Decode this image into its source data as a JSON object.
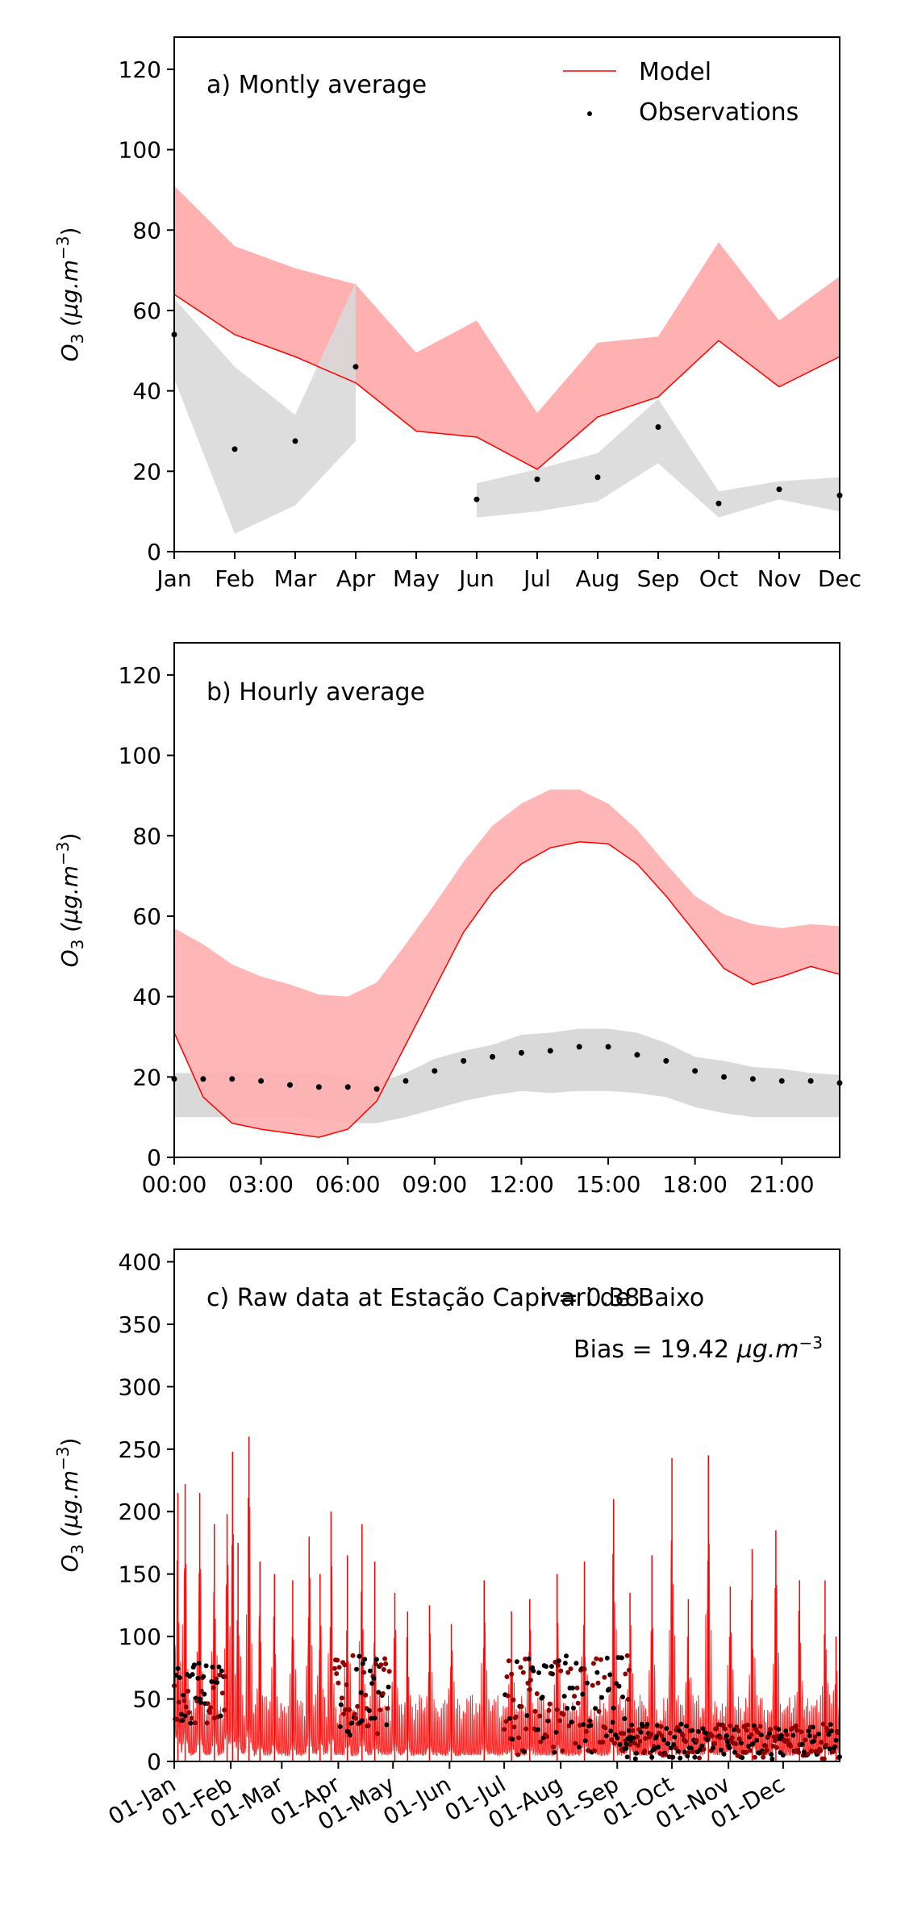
{
  "colors": {
    "model": "#ff0000",
    "model_band": "#ffb0b0",
    "obs": "#000000",
    "obs_band": "#d9d9d9"
  },
  "chart_data": [
    {
      "type": "line",
      "panel": "a",
      "annotation": "a) Montly average",
      "ylabel": "O3 (μg.m−3)",
      "ylabel_main": "O",
      "ylabel_sub": "3",
      "ylabel_unit": "(μg.m",
      "ylabel_exp": "−3",
      "ylabel_close": ")",
      "ylim": [
        0,
        128
      ],
      "yticks": [
        0,
        20,
        40,
        60,
        80,
        100,
        120
      ],
      "legend": {
        "placement": "top-right",
        "model": "Model",
        "observations": "Observations"
      },
      "categories": [
        "Jan",
        "Feb",
        "Mar",
        "Apr",
        "May",
        "Jun",
        "Jul",
        "Aug",
        "Sep",
        "Oct",
        "Nov",
        "Dec"
      ],
      "model": {
        "mean": [
          64,
          54,
          48.5,
          42,
          30,
          28.5,
          20.5,
          33.5,
          38.5,
          52.5,
          41,
          48.5
        ],
        "upper": [
          91,
          76,
          70.5,
          66.5,
          49.5,
          57.5,
          34.5,
          52,
          53.5,
          77,
          57.5,
          68.5
        ]
      },
      "observations": {
        "values": [
          54,
          25.5,
          27.5,
          46,
          null,
          13,
          18,
          18.5,
          31,
          12,
          15.5,
          14
        ],
        "lower": [
          43,
          4.5,
          11.5,
          27.5,
          null,
          8.5,
          10,
          12.5,
          22,
          8.5,
          13,
          10
        ],
        "upper": [
          63,
          46,
          34,
          67,
          null,
          17,
          20.5,
          24.5,
          38,
          15,
          17.5,
          18.5
        ]
      }
    },
    {
      "type": "line",
      "panel": "b",
      "annotation": "b) Hourly average",
      "ylabel": "O3 (μg.m−3)",
      "ylabel_main": "O",
      "ylabel_sub": "3",
      "ylabel_unit": "(μg.m",
      "ylabel_exp": "−3",
      "ylabel_close": ")",
      "ylim": [
        0,
        128
      ],
      "yticks": [
        0,
        20,
        40,
        60,
        80,
        100,
        120
      ],
      "xticklabels": [
        "00:00",
        "03:00",
        "06:00",
        "09:00",
        "12:00",
        "15:00",
        "18:00",
        "21:00"
      ],
      "x": [
        0,
        1,
        2,
        3,
        4,
        5,
        6,
        7,
        8,
        9,
        10,
        11,
        12,
        13,
        14,
        15,
        16,
        17,
        18,
        19,
        20,
        21,
        22,
        23
      ],
      "model": {
        "mean": [
          31,
          15,
          8.5,
          7,
          6,
          5,
          7,
          14,
          28,
          42,
          56,
          66,
          73,
          77,
          78.5,
          78,
          73,
          65,
          56,
          47,
          43,
          45,
          47.5,
          45.5
        ],
        "upper": [
          57,
          53,
          48,
          45,
          43,
          40.5,
          40,
          43.5,
          53,
          63,
          73.5,
          82.5,
          88,
          91.5,
          91.5,
          88,
          81.5,
          73,
          65,
          60.5,
          58,
          57,
          58,
          57.5
        ]
      },
      "observations": {
        "values": [
          19.5,
          19.5,
          19.5,
          19,
          18,
          17.5,
          17.5,
          17,
          19,
          21.5,
          24,
          25,
          26,
          26.5,
          27.5,
          27.5,
          25.5,
          24,
          21.5,
          20,
          19.5,
          19,
          19,
          18.5
        ],
        "lower": [
          10,
          10,
          10,
          10,
          10,
          9.5,
          8.5,
          8.5,
          10,
          12,
          14,
          15.5,
          16.5,
          16,
          16.5,
          16.5,
          16,
          15,
          12.5,
          11,
          10,
          10,
          10,
          10
        ],
        "upper": [
          21,
          21,
          21,
          21,
          21,
          21,
          20,
          18.5,
          21,
          24.5,
          26.5,
          28,
          30.5,
          31,
          32,
          32,
          31,
          28.5,
          25,
          24,
          22.5,
          22,
          21,
          20.5
        ]
      }
    },
    {
      "type": "line",
      "panel": "c",
      "annotation": "c) Raw data at Estação Capivari de Baixo",
      "stat_r": "r = 0.38",
      "stat_bias": "Bias = 19.42 μg.m−3",
      "stat_bias_text": "Bias = 19.42",
      "stat_bias_unit": "μg.m",
      "stat_bias_exp": "−3",
      "ylabel": "O3 (μg.m−3)",
      "ylabel_main": "O",
      "ylabel_sub": "3",
      "ylabel_unit": "(μg.m",
      "ylabel_exp": "−3",
      "ylabel_close": ")",
      "ylim": [
        0,
        410
      ],
      "yticks": [
        0,
        50,
        100,
        150,
        200,
        250,
        300,
        350,
        400
      ],
      "xticklabels": [
        "01-Jan",
        "01-Feb",
        "01-Mar",
        "01-Apr",
        "01-May",
        "01-Jun",
        "01-Jul",
        "01-Aug",
        "01-Sep",
        "01-Oct",
        "01-Nov",
        "01-Dec"
      ],
      "x_range_days": [
        0,
        365
      ],
      "model_peaks": [
        {
          "day": 2,
          "value": 215
        },
        {
          "day": 6,
          "value": 222
        },
        {
          "day": 14,
          "value": 215
        },
        {
          "day": 22,
          "value": 190
        },
        {
          "day": 29,
          "value": 198
        },
        {
          "day": 32,
          "value": 248
        },
        {
          "day": 35,
          "value": 175
        },
        {
          "day": 41,
          "value": 260
        },
        {
          "day": 47,
          "value": 160
        },
        {
          "day": 55,
          "value": 150
        },
        {
          "day": 65,
          "value": 145
        },
        {
          "day": 74,
          "value": 180
        },
        {
          "day": 80,
          "value": 150
        },
        {
          "day": 86,
          "value": 200
        },
        {
          "day": 95,
          "value": 165
        },
        {
          "day": 103,
          "value": 190
        },
        {
          "day": 110,
          "value": 160
        },
        {
          "day": 121,
          "value": 135
        },
        {
          "day": 128,
          "value": 120
        },
        {
          "day": 140,
          "value": 125
        },
        {
          "day": 152,
          "value": 110
        },
        {
          "day": 170,
          "value": 145
        },
        {
          "day": 185,
          "value": 120
        },
        {
          "day": 195,
          "value": 130
        },
        {
          "day": 210,
          "value": 150
        },
        {
          "day": 225,
          "value": 160
        },
        {
          "day": 241,
          "value": 210
        },
        {
          "day": 250,
          "value": 135
        },
        {
          "day": 262,
          "value": 165
        },
        {
          "day": 273,
          "value": 243
        },
        {
          "day": 282,
          "value": 130
        },
        {
          "day": 293,
          "value": 245
        },
        {
          "day": 305,
          "value": 140
        },
        {
          "day": 317,
          "value": 170
        },
        {
          "day": 330,
          "value": 185
        },
        {
          "day": 343,
          "value": 145
        },
        {
          "day": 357,
          "value": 145
        },
        {
          "day": 363,
          "value": 100
        }
      ],
      "obs_clusters": [
        {
          "start": 0,
          "end": 28,
          "min": 30,
          "max": 80
        },
        {
          "start": 88,
          "end": 118,
          "min": 20,
          "max": 85
        },
        {
          "start": 181,
          "end": 250,
          "min": 5,
          "max": 85
        },
        {
          "start": 245,
          "end": 365,
          "min": 2,
          "max": 30
        }
      ]
    }
  ]
}
